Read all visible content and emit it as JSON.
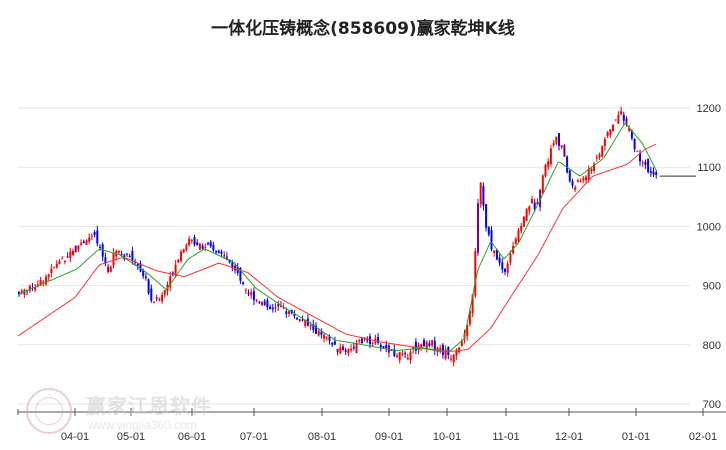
{
  "chart_data": {
    "type": "candlestick",
    "title": "一体化压铸概念(858609)赢家乾坤K线",
    "xlabel": "",
    "ylabel": "",
    "ylim": [
      690,
      1230
    ],
    "y_ticks": [
      700,
      800,
      900,
      1000,
      1100,
      1200
    ],
    "x_ticks": [
      "04-01",
      "05-01",
      "06-01",
      "07-01",
      "08-01",
      "09-01",
      "10-01",
      "11-01",
      "12-01",
      "01-01",
      "02-01"
    ],
    "last_close": 1085,
    "colors": {
      "up": "#ff0000",
      "down": "#0000ff",
      "neutral": "#7f0080",
      "ma_short": "#2aa02a",
      "ma_long": "#ff3333",
      "grid": "#e6e6e6"
    },
    "close_anchors": [
      [
        "03-18",
        888
      ],
      [
        "03-23",
        905
      ],
      [
        "03-28",
        945
      ],
      [
        "04-04",
        972
      ],
      [
        "04-11",
        985
      ],
      [
        "04-15",
        955
      ],
      [
        "04-19",
        925
      ],
      [
        "04-22",
        962
      ],
      [
        "04-27",
        955
      ],
      [
        "05-04",
        938
      ],
      [
        "05-09",
        908
      ],
      [
        "05-11",
        875
      ],
      [
        "05-16",
        878
      ],
      [
        "05-20",
        905
      ],
      [
        "05-25",
        950
      ],
      [
        "05-30",
        975
      ],
      [
        "06-05",
        972
      ],
      [
        "06-09",
        962
      ],
      [
        "06-16",
        952
      ],
      [
        "06-23",
        922
      ],
      [
        "06-28",
        890
      ],
      [
        "07-03",
        875
      ],
      [
        "07-07",
        865
      ],
      [
        "07-14",
        862
      ],
      [
        "07-21",
        845
      ],
      [
        "07-26",
        832
      ],
      [
        "08-01",
        815
      ],
      [
        "08-06",
        800
      ],
      [
        "08-10",
        790
      ],
      [
        "08-15",
        795
      ],
      [
        "08-21",
        808
      ],
      [
        "08-25",
        805
      ],
      [
        "08-30",
        795
      ],
      [
        "09-04",
        785
      ],
      [
        "09-09",
        780
      ],
      [
        "09-14",
        795
      ],
      [
        "09-19",
        805
      ],
      [
        "09-24",
        800
      ],
      [
        "09-28",
        790
      ],
      [
        "10-03",
        780
      ],
      [
        "10-08",
        800
      ],
      [
        "10-12",
        830
      ],
      [
        "10-15",
        900
      ],
      [
        "10-17",
        1030
      ],
      [
        "10-19",
        1080
      ],
      [
        "10-21",
        1000
      ],
      [
        "10-24",
        970
      ],
      [
        "10-28",
        940
      ],
      [
        "10-31",
        920
      ],
      [
        "11-04",
        965
      ],
      [
        "11-08",
        1000
      ],
      [
        "11-11",
        1030
      ],
      [
        "11-13",
        1040
      ],
      [
        "11-15",
        1035
      ],
      [
        "11-18",
        1080
      ],
      [
        "11-22",
        1125
      ],
      [
        "11-25",
        1155
      ],
      [
        "11-28",
        1125
      ],
      [
        "12-01",
        1080
      ],
      [
        "12-03",
        1065
      ],
      [
        "12-07",
        1080
      ],
      [
        "12-10",
        1090
      ],
      [
        "12-13",
        1110
      ],
      [
        "12-17",
        1140
      ],
      [
        "12-21",
        1170
      ],
      [
        "12-25",
        1195
      ],
      [
        "12-29",
        1160
      ],
      [
        "01-01",
        1125
      ],
      [
        "01-05",
        1100
      ],
      [
        "01-09",
        1085
      ],
      [
        "01-11",
        1085
      ]
    ],
    "ma_short_anchors": [
      [
        "03-18",
        885
      ],
      [
        "04-02",
        928
      ],
      [
        "04-14",
        962
      ],
      [
        "04-25",
        952
      ],
      [
        "05-09",
        922
      ],
      [
        "05-19",
        893
      ],
      [
        "05-30",
        945
      ],
      [
        "06-07",
        962
      ],
      [
        "06-21",
        940
      ],
      [
        "07-02",
        895
      ],
      [
        "07-14",
        865
      ],
      [
        "07-26",
        838
      ],
      [
        "08-07",
        808
      ],
      [
        "08-20",
        800
      ],
      [
        "09-05",
        790
      ],
      [
        "09-18",
        795
      ],
      [
        "10-02",
        788
      ],
      [
        "10-10",
        810
      ],
      [
        "10-17",
        925
      ],
      [
        "10-24",
        975
      ],
      [
        "10-31",
        945
      ],
      [
        "11-07",
        972
      ],
      [
        "11-18",
        1050
      ],
      [
        "11-26",
        1110
      ],
      [
        "12-06",
        1085
      ],
      [
        "12-17",
        1115
      ],
      [
        "12-27",
        1175
      ],
      [
        "01-04",
        1140
      ],
      [
        "01-11",
        1090
      ]
    ],
    "ma_long_anchors": [
      [
        "03-18",
        815
      ],
      [
        "04-01",
        880
      ],
      [
        "04-14",
        935
      ],
      [
        "04-27",
        948
      ],
      [
        "05-14",
        925
      ],
      [
        "05-28",
        915
      ],
      [
        "06-14",
        938
      ],
      [
        "06-28",
        922
      ],
      [
        "07-12",
        880
      ],
      [
        "07-28",
        848
      ],
      [
        "08-12",
        818
      ],
      [
        "08-28",
        805
      ],
      [
        "09-14",
        796
      ],
      [
        "09-30",
        788
      ],
      [
        "10-12",
        792
      ],
      [
        "10-24",
        828
      ],
      [
        "11-04",
        885
      ],
      [
        "11-16",
        950
      ],
      [
        "11-28",
        1030
      ],
      [
        "12-12",
        1085
      ],
      [
        "12-28",
        1105
      ],
      [
        "01-05",
        1130
      ],
      [
        "01-11",
        1140
      ]
    ]
  }
}
